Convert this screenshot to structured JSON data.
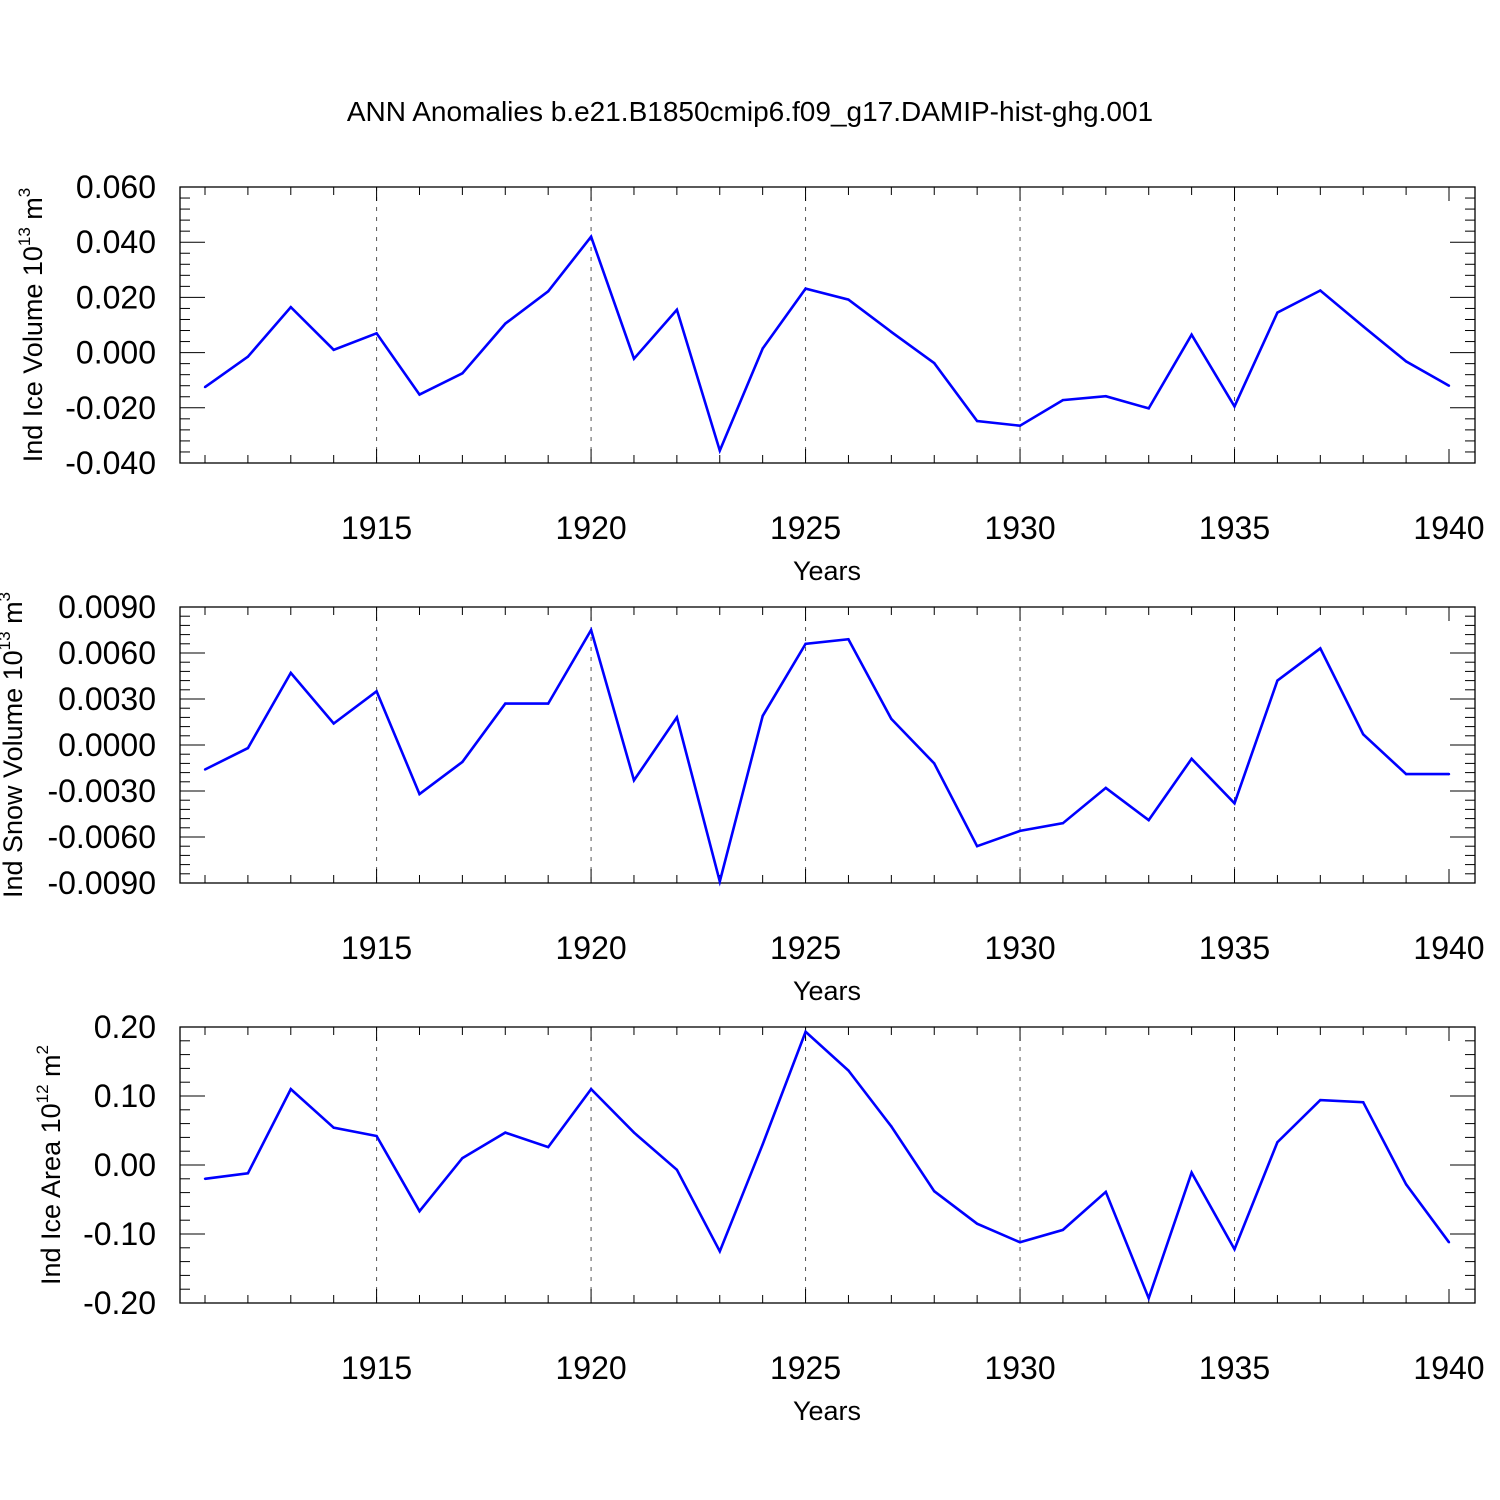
{
  "title": "ANN Anomalies b.e21.B1850cmip6.f09_g17.DAMIP-hist-ghg.001",
  "colors": {
    "line": "#0000ff",
    "axis": "#000000",
    "grid": "#555555"
  },
  "chart_data": [
    {
      "type": "line",
      "ylabel": {
        "text": "Ind Ice Volume 10",
        "exp": "13",
        "unit": " m",
        "unit_exp": "3"
      },
      "xlabel": "Years",
      "xlim": [
        1911,
        1940
      ],
      "ylim": [
        -0.04,
        0.06
      ],
      "yticks": [
        -0.04,
        -0.02,
        0.0,
        0.02,
        0.04,
        0.06
      ],
      "ytick_labels": [
        "-0.040",
        "-0.020",
        "0.000",
        "0.020",
        "0.040",
        "0.060"
      ],
      "xticks": [
        1915,
        1920,
        1925,
        1930,
        1935,
        1940
      ],
      "xtick_labels": [
        "1915",
        "1920",
        "1925",
        "1930",
        "1935",
        "1940"
      ],
      "grid_x": [
        1915,
        1920,
        1925,
        1930,
        1935
      ],
      "x": [
        1911,
        1912,
        1913,
        1914,
        1915,
        1916,
        1917,
        1918,
        1919,
        1920,
        1921,
        1922,
        1923,
        1924,
        1925,
        1926,
        1927,
        1928,
        1929,
        1930,
        1931,
        1932,
        1933,
        1934,
        1935,
        1936,
        1937,
        1938,
        1939,
        1940
      ],
      "y": [
        -0.0125,
        -0.0015,
        0.0165,
        0.001,
        0.007,
        -0.0152,
        -0.0075,
        0.0105,
        0.0222,
        0.042,
        -0.0022,
        0.0155,
        -0.0355,
        0.0015,
        0.0232,
        0.0192,
        0.0075,
        -0.0038,
        -0.0248,
        -0.0265,
        -0.0172,
        -0.0158,
        -0.0202,
        0.0065,
        -0.0195,
        0.0145,
        0.0225,
        0.0095,
        -0.0032,
        -0.012
      ]
    },
    {
      "type": "line",
      "ylabel": {
        "text": "Ind Snow Volume 10",
        "exp": "13",
        "unit": " m",
        "unit_exp": "3"
      },
      "xlabel": "Years",
      "xlim": [
        1911,
        1940
      ],
      "ylim": [
        -0.009,
        0.009
      ],
      "yticks": [
        -0.009,
        -0.006,
        -0.003,
        0.0,
        0.003,
        0.006,
        0.009
      ],
      "ytick_labels": [
        "-0.0090",
        "-0.0060",
        "-0.0030",
        "0.0000",
        "0.0030",
        "0.0060",
        "0.0090"
      ],
      "xticks": [
        1915,
        1920,
        1925,
        1930,
        1935,
        1940
      ],
      "xtick_labels": [
        "1915",
        "1920",
        "1925",
        "1930",
        "1935",
        "1940"
      ],
      "grid_x": [
        1915,
        1920,
        1925,
        1930,
        1935
      ],
      "x": [
        1911,
        1912,
        1913,
        1914,
        1915,
        1916,
        1917,
        1918,
        1919,
        1920,
        1921,
        1922,
        1923,
        1924,
        1925,
        1926,
        1927,
        1928,
        1929,
        1930,
        1931,
        1932,
        1933,
        1934,
        1935,
        1936,
        1937,
        1938,
        1939,
        1940
      ],
      "y": [
        -0.0016,
        -0.0002,
        0.0047,
        0.0014,
        0.0035,
        -0.0032,
        -0.0011,
        0.0027,
        0.0027,
        0.0075,
        -0.0023,
        0.0018,
        -0.0089,
        0.0019,
        0.0066,
        0.0069,
        0.0017,
        -0.0012,
        -0.0066,
        -0.0056,
        -0.0051,
        -0.0028,
        -0.0049,
        -0.0009,
        -0.0038,
        0.0042,
        0.0063,
        0.0007,
        -0.0019,
        -0.0019
      ]
    },
    {
      "type": "line",
      "ylabel": {
        "text": "Ind Ice Area 10",
        "exp": "12",
        "unit": " m",
        "unit_exp": "2"
      },
      "xlabel": "Years",
      "xlim": [
        1911,
        1940
      ],
      "ylim": [
        -0.2,
        0.2
      ],
      "yticks": [
        -0.2,
        -0.1,
        0.0,
        0.1,
        0.2
      ],
      "ytick_labels": [
        "-0.20",
        "-0.10",
        "0.00",
        "0.10",
        "0.20"
      ],
      "xticks": [
        1915,
        1920,
        1925,
        1930,
        1935,
        1940
      ],
      "xtick_labels": [
        "1915",
        "1920",
        "1925",
        "1930",
        "1935",
        "1940"
      ],
      "grid_x": [
        1915,
        1920,
        1925,
        1930,
        1935
      ],
      "x": [
        1911,
        1912,
        1913,
        1914,
        1915,
        1916,
        1917,
        1918,
        1919,
        1920,
        1921,
        1922,
        1923,
        1924,
        1925,
        1926,
        1927,
        1928,
        1929,
        1930,
        1931,
        1932,
        1933,
        1934,
        1935,
        1936,
        1937,
        1938,
        1939,
        1940
      ],
      "y": [
        -0.02,
        -0.012,
        0.11,
        0.054,
        0.042,
        -0.067,
        0.01,
        0.047,
        0.026,
        0.11,
        0.047,
        -0.007,
        -0.125,
        0.03,
        0.193,
        0.137,
        0.056,
        -0.038,
        -0.085,
        -0.112,
        -0.094,
        -0.039,
        -0.193,
        -0.011,
        -0.122,
        0.033,
        0.094,
        0.091,
        -0.028,
        -0.112
      ]
    }
  ]
}
